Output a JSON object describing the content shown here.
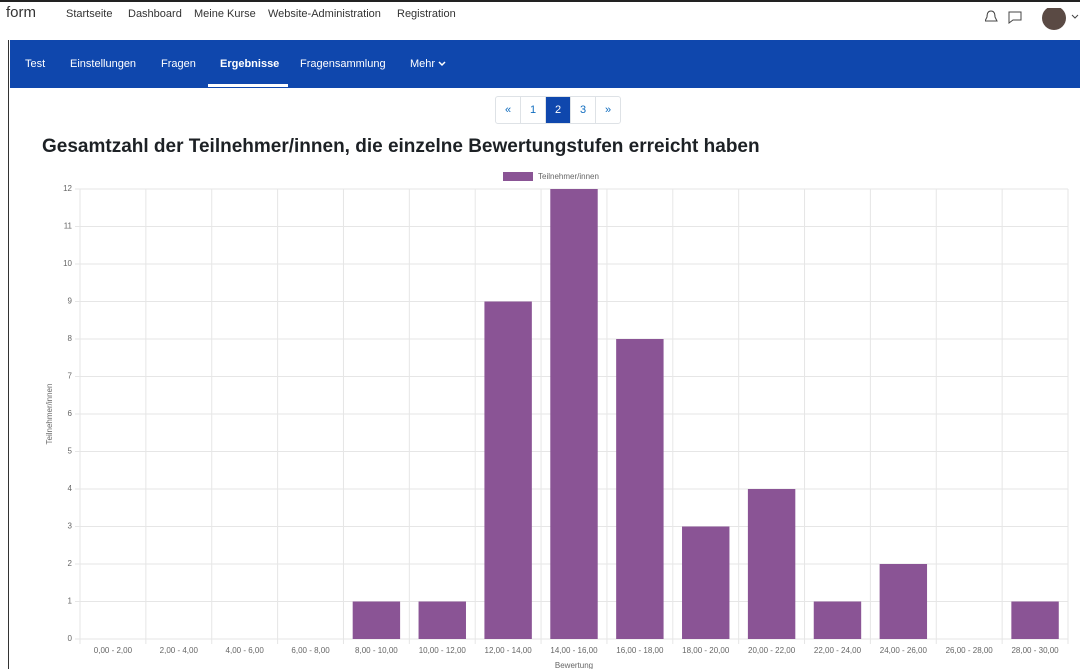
{
  "topnav": {
    "brand": "form",
    "links": [
      "Startseite",
      "Dashboard",
      "Meine Kurse",
      "Website-Administration",
      "Registration"
    ]
  },
  "tabs": {
    "items": [
      "Test",
      "Einstellungen",
      "Fragen",
      "Ergebnisse",
      "Fragensammlung",
      "Mehr"
    ],
    "active": "Ergebnisse"
  },
  "pagination": {
    "items": [
      "«",
      "1",
      "2",
      "3",
      "»"
    ],
    "active": "2"
  },
  "chart_data": {
    "type": "bar",
    "title": "Gesamtzahl der Teilnehmer/innen, die einzelne Bewertungstufen erreicht haben",
    "x_label": "Bewertung",
    "y_label": "Teilnehmer/innen",
    "categories": [
      "0,00 - 2,00",
      "2,00 - 4,00",
      "4,00 - 6,00",
      "6,00 - 8,00",
      "8,00 - 10,00",
      "10,00 - 12,00",
      "12,00 - 14,00",
      "14,00 - 16,00",
      "16,00 - 18,00",
      "18,00 - 20,00",
      "20,00 - 22,00",
      "22,00 - 24,00",
      "24,00 - 26,00",
      "26,00 - 28,00",
      "28,00 - 30,00"
    ],
    "series": [
      {
        "name": "Teilnehmer/innen",
        "color": "#8a5495",
        "values": [
          0,
          0,
          0,
          0,
          1,
          1,
          9,
          12,
          8,
          3,
          4,
          1,
          2,
          0,
          1
        ]
      }
    ],
    "ylim": [
      0,
      12
    ],
    "yticks": [
      0,
      1,
      2,
      3,
      4,
      5,
      6,
      7,
      8,
      9,
      10,
      11,
      12
    ],
    "grid": true,
    "legend": "top"
  }
}
